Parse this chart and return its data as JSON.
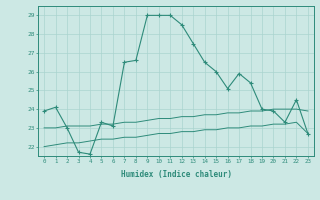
{
  "xlabel": "Humidex (Indice chaleur)",
  "x_values": [
    0,
    1,
    2,
    3,
    4,
    5,
    6,
    7,
    8,
    9,
    10,
    11,
    12,
    13,
    14,
    15,
    16,
    17,
    18,
    19,
    20,
    21,
    22,
    23
  ],
  "line1_y": [
    23.9,
    24.1,
    23.0,
    21.7,
    21.6,
    23.3,
    23.1,
    26.5,
    26.6,
    29.0,
    29.0,
    29.0,
    28.5,
    27.5,
    26.5,
    26.0,
    25.1,
    25.9,
    25.4,
    24.0,
    23.9,
    23.3,
    24.5,
    22.7
  ],
  "line2_y": [
    23.0,
    23.0,
    23.1,
    23.1,
    23.1,
    23.2,
    23.2,
    23.3,
    23.3,
    23.4,
    23.5,
    23.5,
    23.6,
    23.6,
    23.7,
    23.7,
    23.8,
    23.8,
    23.9,
    23.9,
    24.0,
    24.0,
    24.0,
    23.9
  ],
  "line3_y": [
    22.0,
    22.1,
    22.2,
    22.2,
    22.3,
    22.4,
    22.4,
    22.5,
    22.5,
    22.6,
    22.7,
    22.7,
    22.8,
    22.8,
    22.9,
    22.9,
    23.0,
    23.0,
    23.1,
    23.1,
    23.2,
    23.2,
    23.3,
    22.7
  ],
  "line_color": "#2e8b7a",
  "bg_color": "#cce8e4",
  "grid_color": "#aad4cf",
  "ylim": [
    21.5,
    29.5
  ],
  "yticks": [
    22,
    23,
    24,
    25,
    26,
    27,
    28,
    29
  ]
}
